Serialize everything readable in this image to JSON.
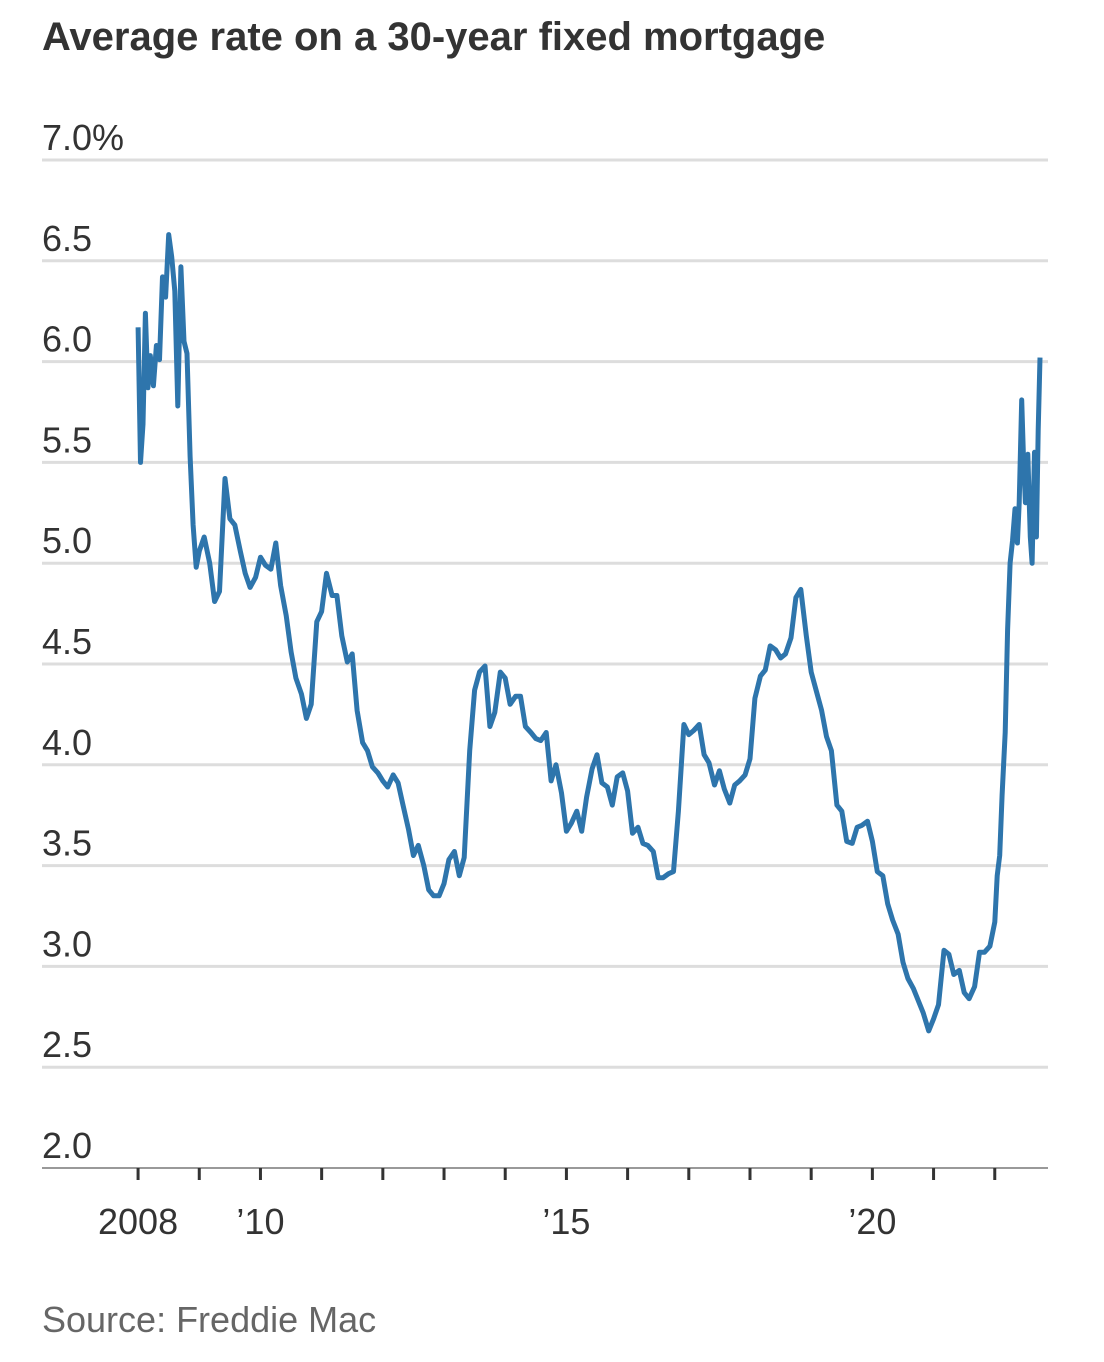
{
  "chart_data": {
    "type": "line",
    "title": "Average rate on a 30-year fixed mortgage",
    "source": "Source: Freddie Mac",
    "x": [
      2008.0,
      2008.04,
      2008.08,
      2008.12,
      2008.16,
      2008.2,
      2008.25,
      2008.3,
      2008.35,
      2008.4,
      2008.45,
      2008.5,
      2008.55,
      2008.6,
      2008.65,
      2008.7,
      2008.75,
      2008.8,
      2008.85,
      2008.9,
      2008.95,
      2009.0,
      2009.08,
      2009.17,
      2009.25,
      2009.33,
      2009.42,
      2009.5,
      2009.58,
      2009.67,
      2009.75,
      2009.83,
      2009.92,
      2010.0,
      2010.08,
      2010.17,
      2010.25,
      2010.33,
      2010.42,
      2010.5,
      2010.58,
      2010.67,
      2010.75,
      2010.83,
      2010.92,
      2011.0,
      2011.08,
      2011.17,
      2011.25,
      2011.33,
      2011.42,
      2011.5,
      2011.58,
      2011.67,
      2011.75,
      2011.83,
      2011.92,
      2012.0,
      2012.08,
      2012.17,
      2012.25,
      2012.33,
      2012.42,
      2012.5,
      2012.58,
      2012.67,
      2012.75,
      2012.83,
      2012.92,
      2013.0,
      2013.08,
      2013.17,
      2013.25,
      2013.33,
      2013.42,
      2013.5,
      2013.58,
      2013.67,
      2013.75,
      2013.83,
      2013.92,
      2014.0,
      2014.08,
      2014.17,
      2014.25,
      2014.33,
      2014.42,
      2014.5,
      2014.58,
      2014.67,
      2014.75,
      2014.83,
      2014.92,
      2015.0,
      2015.08,
      2015.17,
      2015.25,
      2015.33,
      2015.42,
      2015.5,
      2015.58,
      2015.67,
      2015.75,
      2015.83,
      2015.92,
      2016.0,
      2016.08,
      2016.17,
      2016.25,
      2016.33,
      2016.42,
      2016.5,
      2016.58,
      2016.67,
      2016.75,
      2016.83,
      2016.92,
      2017.0,
      2017.08,
      2017.17,
      2017.25,
      2017.33,
      2017.42,
      2017.5,
      2017.58,
      2017.67,
      2017.75,
      2017.83,
      2017.92,
      2018.0,
      2018.08,
      2018.17,
      2018.25,
      2018.33,
      2018.42,
      2018.5,
      2018.58,
      2018.67,
      2018.75,
      2018.83,
      2018.92,
      2019.0,
      2019.08,
      2019.17,
      2019.25,
      2019.33,
      2019.42,
      2019.5,
      2019.58,
      2019.67,
      2019.75,
      2019.83,
      2019.92,
      2020.0,
      2020.08,
      2020.17,
      2020.25,
      2020.33,
      2020.42,
      2020.5,
      2020.58,
      2020.67,
      2020.75,
      2020.83,
      2020.92,
      2021.0,
      2021.08,
      2021.17,
      2021.25,
      2021.33,
      2021.42,
      2021.5,
      2021.58,
      2021.67,
      2021.75,
      2021.83,
      2021.92,
      2022.0,
      2022.04,
      2022.08,
      2022.12,
      2022.17,
      2022.21,
      2022.25,
      2022.29,
      2022.33,
      2022.37,
      2022.4,
      2022.44,
      2022.47,
      2022.5,
      2022.54,
      2022.58,
      2022.61,
      2022.65,
      2022.68,
      2022.71,
      2022.74
    ],
    "series": [
      {
        "color": "#2e75ac",
        "values": [
          6.17,
          5.5,
          5.69,
          6.24,
          5.87,
          6.03,
          5.88,
          6.08,
          6.01,
          6.42,
          6.32,
          6.63,
          6.52,
          6.35,
          5.78,
          6.47,
          6.1,
          6.04,
          5.53,
          5.19,
          4.98,
          5.06,
          5.13,
          5.0,
          4.81,
          4.86,
          5.42,
          5.22,
          5.19,
          5.06,
          4.95,
          4.88,
          4.93,
          5.03,
          4.99,
          4.97,
          5.1,
          4.89,
          4.74,
          4.56,
          4.43,
          4.35,
          4.23,
          4.3,
          4.71,
          4.76,
          4.95,
          4.84,
          4.84,
          4.64,
          4.51,
          4.55,
          4.27,
          4.11,
          4.07,
          3.99,
          3.96,
          3.92,
          3.89,
          3.95,
          3.91,
          3.8,
          3.68,
          3.55,
          3.6,
          3.5,
          3.38,
          3.35,
          3.35,
          3.41,
          3.53,
          3.57,
          3.45,
          3.54,
          4.07,
          4.37,
          4.46,
          4.49,
          4.19,
          4.26,
          4.46,
          4.43,
          4.3,
          4.34,
          4.34,
          4.19,
          4.16,
          4.13,
          4.12,
          4.16,
          3.92,
          4.0,
          3.86,
          3.67,
          3.71,
          3.77,
          3.67,
          3.84,
          3.98,
          4.05,
          3.91,
          3.89,
          3.8,
          3.94,
          3.96,
          3.87,
          3.66,
          3.69,
          3.61,
          3.6,
          3.57,
          3.44,
          3.44,
          3.46,
          3.47,
          3.77,
          4.2,
          4.15,
          4.17,
          4.2,
          4.05,
          4.01,
          3.9,
          3.97,
          3.88,
          3.81,
          3.9,
          3.92,
          3.95,
          4.03,
          4.33,
          4.44,
          4.47,
          4.59,
          4.57,
          4.53,
          4.55,
          4.63,
          4.83,
          4.87,
          4.64,
          4.46,
          4.37,
          4.27,
          4.14,
          4.07,
          3.8,
          3.77,
          3.62,
          3.61,
          3.69,
          3.7,
          3.72,
          3.62,
          3.47,
          3.45,
          3.31,
          3.23,
          3.16,
          3.02,
          2.94,
          2.89,
          2.83,
          2.77,
          2.68,
          2.74,
          2.81,
          3.08,
          3.06,
          2.96,
          2.98,
          2.87,
          2.84,
          2.9,
          3.07,
          3.07,
          3.1,
          3.22,
          3.45,
          3.55,
          3.85,
          4.16,
          4.67,
          5.0,
          5.11,
          5.27,
          5.1,
          5.3,
          5.81,
          5.52,
          5.3,
          5.54,
          5.13,
          5.0,
          5.55,
          5.13,
          5.66,
          6.02
        ]
      }
    ],
    "xlim": [
      2006.43,
      2022.87
    ],
    "xticks": [
      2008,
      {
        "value": 2010,
        "label": "’10"
      },
      {
        "value": 2015,
        "label": "’15"
      },
      {
        "value": 2020,
        "label": "’20"
      }
    ],
    "xminorticks": [
      2009,
      2011,
      2012,
      2013,
      2014,
      2016,
      2017,
      2018,
      2019,
      2021,
      2022
    ],
    "ylim": [
      2,
      7
    ],
    "yticks": [
      {
        "value": 2,
        "label": "2.0"
      },
      2.5,
      {
        "value": 3,
        "label": "3.0"
      },
      3.5,
      {
        "value": 4,
        "label": "4.0"
      },
      4.5,
      {
        "value": 5,
        "label": "5.0"
      },
      5.5,
      {
        "value": 6,
        "label": "6.0"
      },
      6.5,
      {
        "value": 7,
        "label": "7.0%"
      }
    ],
    "grid": true
  }
}
